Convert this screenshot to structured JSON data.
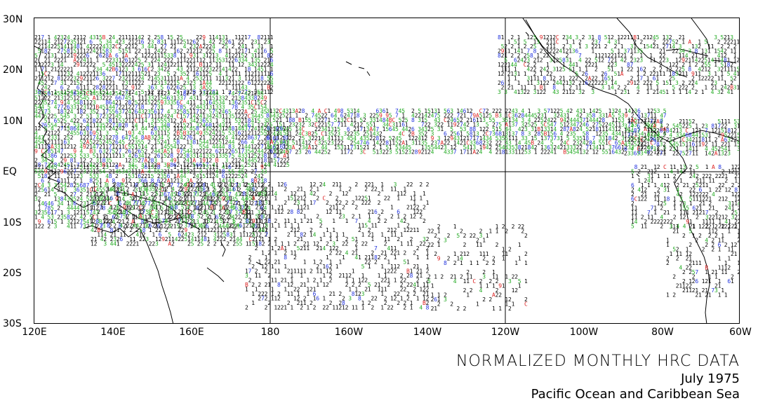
{
  "map": {
    "lat_labels": [
      "30N",
      "20N",
      "10N",
      "EQ",
      "10S",
      "20S",
      "30S"
    ],
    "lon_labels": [
      "120E",
      "140E",
      "160E",
      "180",
      "160W",
      "140W",
      "120W",
      "100W",
      "80W",
      "60W"
    ],
    "colors": {
      "value_1_2": "#000000",
      "value_3_5": "#22aa22",
      "value_6_8": "#2233dd",
      "value_9_plus": "#dd2222",
      "coast": "#000000",
      "grid": "#000000"
    }
  },
  "caption": {
    "title": "NORMALIZED MONTHLY HRC DATA",
    "date": "July 1975",
    "region": "Pacific Ocean and Caribbean Sea"
  }
}
